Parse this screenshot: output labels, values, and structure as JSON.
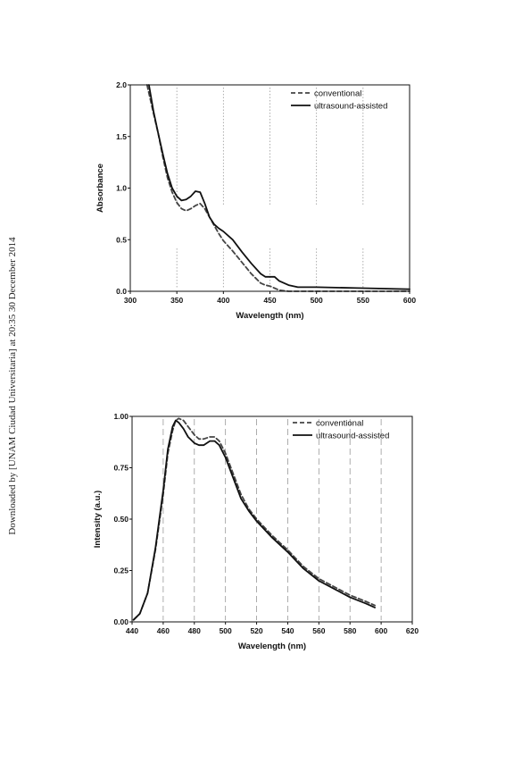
{
  "side_text": "Downloaded by [UNAM Ciudad Universitaria] at 20:35 30 December 2014",
  "chart_data": [
    {
      "type": "line",
      "xlabel": "Wavelength (nm)",
      "ylabel": "Absorbance",
      "xlim": [
        300,
        600
      ],
      "ylim": [
        0.0,
        2.0
      ],
      "xticks": [
        300,
        350,
        400,
        450,
        500,
        550,
        600
      ],
      "yticks": [
        0.0,
        0.5,
        1.0,
        1.5,
        2.0
      ],
      "xtick_labels": [
        "300",
        "350",
        "400",
        "450",
        "500",
        "550",
        "600"
      ],
      "ytick_labels": [
        "0.0",
        "0.5",
        "1.0",
        "1.5",
        "2.0"
      ],
      "grid": "vertical dotted",
      "legend_position": "top-right",
      "series": [
        {
          "name": "conventional",
          "style": "dashed",
          "color": "#444444",
          "x": [
            318,
            325,
            330,
            335,
            340,
            345,
            350,
            355,
            360,
            365,
            370,
            375,
            380,
            385,
            390,
            395,
            400,
            410,
            420,
            430,
            440,
            445,
            450,
            455,
            460,
            470,
            480,
            500,
            550,
            600
          ],
          "y": [
            2.0,
            1.72,
            1.53,
            1.3,
            1.1,
            0.96,
            0.86,
            0.8,
            0.78,
            0.8,
            0.83,
            0.85,
            0.8,
            0.72,
            0.64,
            0.56,
            0.49,
            0.39,
            0.28,
            0.17,
            0.08,
            0.06,
            0.05,
            0.03,
            0.01,
            0.0,
            0.0,
            0.0,
            0.0,
            0.0
          ]
        },
        {
          "name": "ultrasound-assisted",
          "style": "solid",
          "color": "#111111",
          "x": [
            320,
            325,
            330,
            335,
            340,
            345,
            350,
            355,
            360,
            365,
            370,
            375,
            380,
            385,
            390,
            395,
            400,
            410,
            420,
            430,
            440,
            445,
            450,
            455,
            460,
            470,
            480,
            500,
            550,
            600
          ],
          "y": [
            2.0,
            1.74,
            1.53,
            1.33,
            1.14,
            1.0,
            0.92,
            0.88,
            0.89,
            0.92,
            0.97,
            0.96,
            0.85,
            0.72,
            0.65,
            0.61,
            0.58,
            0.5,
            0.38,
            0.27,
            0.17,
            0.14,
            0.14,
            0.14,
            0.1,
            0.06,
            0.04,
            0.04,
            0.03,
            0.02
          ]
        }
      ]
    },
    {
      "type": "line",
      "xlabel": "Wavelength (nm)",
      "ylabel": "Intensity (a.u.)",
      "xlim": [
        440,
        620
      ],
      "ylim": [
        0.0,
        1.0
      ],
      "xticks": [
        440,
        460,
        480,
        500,
        520,
        540,
        560,
        580,
        600,
        620
      ],
      "yticks": [
        0.0,
        0.25,
        0.5,
        0.75,
        1.0
      ],
      "xtick_labels": [
        "440",
        "460",
        "480",
        "500",
        "520",
        "540",
        "560",
        "580",
        "600",
        "620"
      ],
      "ytick_labels": [
        "0.00",
        "0.25",
        "0.50",
        "0.75",
        "1.00"
      ],
      "grid": "vertical dashed",
      "legend_position": "top-right",
      "series": [
        {
          "name": "conventional",
          "style": "dashed",
          "color": "#444444",
          "x": [
            441,
            445,
            450,
            455,
            460,
            463,
            466,
            468,
            470,
            473,
            476,
            480,
            483,
            486,
            490,
            493,
            496,
            500,
            505,
            510,
            515,
            520,
            530,
            540,
            550,
            560,
            570,
            580,
            590,
            596
          ],
          "y": [
            0.01,
            0.04,
            0.14,
            0.35,
            0.62,
            0.82,
            0.93,
            0.98,
            0.99,
            0.98,
            0.95,
            0.91,
            0.89,
            0.89,
            0.9,
            0.9,
            0.88,
            0.82,
            0.72,
            0.62,
            0.55,
            0.5,
            0.42,
            0.35,
            0.27,
            0.21,
            0.17,
            0.13,
            0.1,
            0.08
          ]
        },
        {
          "name": "ultrasound-assisted",
          "style": "solid",
          "color": "#111111",
          "x": [
            441,
            445,
            450,
            455,
            460,
            463,
            466,
            468,
            470,
            473,
            476,
            480,
            483,
            486,
            490,
            493,
            496,
            500,
            505,
            510,
            515,
            520,
            530,
            540,
            550,
            560,
            570,
            580,
            590,
            596
          ],
          "y": [
            0.01,
            0.04,
            0.14,
            0.36,
            0.64,
            0.84,
            0.95,
            0.98,
            0.97,
            0.94,
            0.9,
            0.87,
            0.86,
            0.86,
            0.88,
            0.88,
            0.86,
            0.8,
            0.7,
            0.6,
            0.54,
            0.49,
            0.41,
            0.34,
            0.26,
            0.2,
            0.16,
            0.12,
            0.09,
            0.07
          ]
        }
      ]
    }
  ]
}
